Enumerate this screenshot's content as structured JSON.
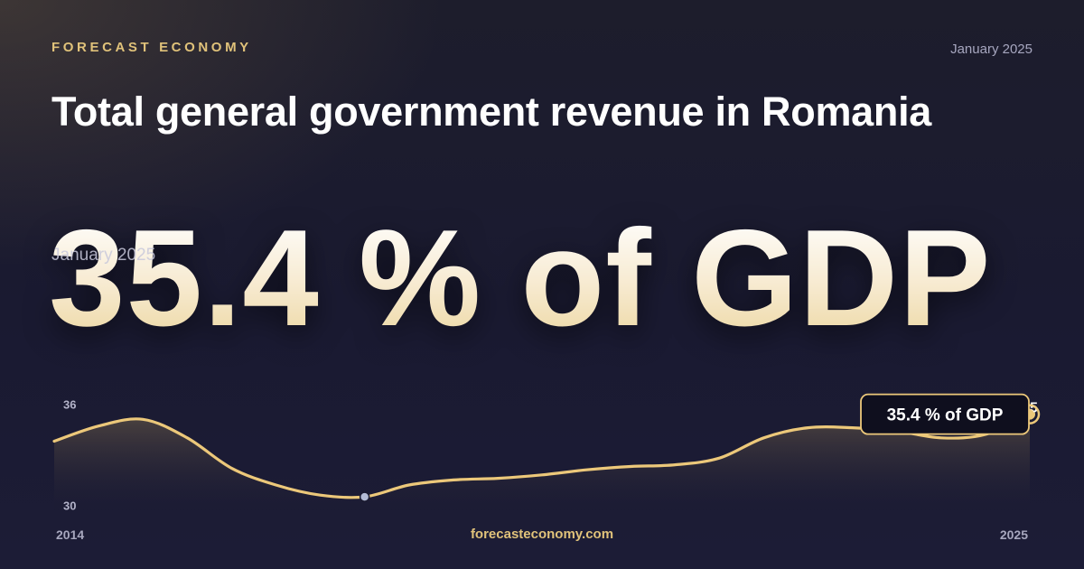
{
  "brand": "FORECAST ECONOMY",
  "date": "January 2025",
  "title": "Total general government revenue in Romania",
  "headline_value": "35.4 % of GDP",
  "website": "forecasteconomy.com",
  "colors": {
    "accent": "#e0c27a",
    "line": "#ecc87a",
    "background": "#1b1b30",
    "min_marker": "#b4bcd6"
  },
  "chart_data": {
    "type": "area",
    "x": [
      "2014-01",
      "2014-07",
      "2015-01",
      "2015-07",
      "2016-01",
      "2016-07",
      "2017-01",
      "2017-07",
      "2018-01",
      "2018-07",
      "2019-01",
      "2019-07",
      "2020-01",
      "2020-07",
      "2021-01",
      "2021-07",
      "2022-01",
      "2022-07",
      "2023-01",
      "2023-07",
      "2024-01",
      "2024-07",
      "2025-01"
    ],
    "values": [
      33.8,
      34.7,
      35.1,
      34.0,
      32.2,
      31.2,
      30.6,
      30.5,
      31.2,
      31.5,
      31.6,
      31.8,
      32.1,
      32.3,
      32.4,
      32.8,
      34.0,
      34.6,
      34.6,
      34.4,
      34.0,
      34.2,
      35.4
    ],
    "xlim": [
      "2014-01",
      "2025-01"
    ],
    "ylim": [
      29.7,
      36.4
    ],
    "y_ticks": [
      36,
      30
    ],
    "x_tick_labels": [
      "2014",
      "2025"
    ],
    "peak_label": "35",
    "callout": "35.4 % of GDP",
    "grid": false,
    "legend": "none"
  }
}
